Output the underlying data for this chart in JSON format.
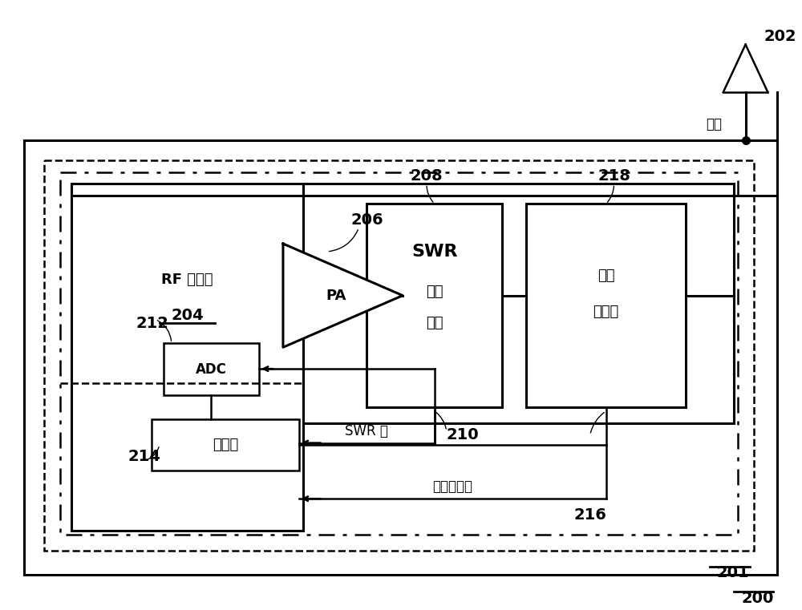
{
  "bg_color": "#ffffff",
  "fig_label_200": "200",
  "fig_label_201": "201",
  "fig_label_202": "202",
  "fig_label_204": "204",
  "fig_label_206": "206",
  "fig_label_208": "208",
  "fig_label_210": "210",
  "fig_label_212": "212",
  "fig_label_214": "214",
  "fig_label_216": "216",
  "fig_label_218": "218",
  "rf_label": "RF 收发器",
  "rf_num": "204",
  "adc_label": "ADC",
  "ctrl_label": "控制器",
  "pa_label": "PA",
  "swr_label1": "SWR",
  "swr_label2": "测量",
  "swr_label3": "单元",
  "antenna_tuner_label1": "天线",
  "antenna_tuner_label2": "调谐器",
  "swr_value_label": "SWR 值",
  "tuner_ctrl_label": "调谐器控制",
  "antenna_label": "天线"
}
